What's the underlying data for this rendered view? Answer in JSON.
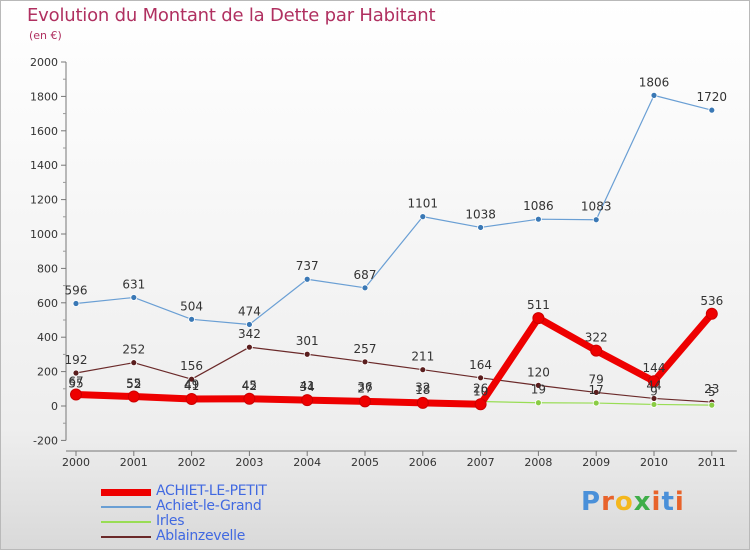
{
  "title": "Evolution du Montant de la Dette par Habitant",
  "subtitle": "(en €)",
  "logo": {
    "text": "Proxiti",
    "colors": [
      "#4a90d9",
      "#e8632b",
      "#f4b71d",
      "#3fae49",
      "#e8632b",
      "#4a90d9",
      "#e8632b"
    ]
  },
  "chart_data": {
    "type": "line",
    "x": [
      "2000",
      "2001",
      "2002",
      "2003",
      "2004",
      "2005",
      "2006",
      "2007",
      "2008",
      "2009",
      "2010",
      "2011"
    ],
    "ylim": [
      -200,
      2000
    ],
    "yticks": [
      -200,
      0,
      200,
      400,
      600,
      800,
      1000,
      1200,
      1400,
      1600,
      1800,
      2000
    ],
    "grid": false,
    "legend_position": "bottom-left",
    "series": [
      {
        "name": "Achiet-le-Grand",
        "color": "#6a9fd4",
        "marker": "#3a78b5",
        "width": 1.2,
        "label_color": "#333",
        "values": [
          596,
          631,
          504,
          474,
          737,
          687,
          1101,
          1038,
          1086,
          1083,
          1806,
          1720
        ]
      },
      {
        "name": "Ablainzevelle",
        "color": "#6b2a2a",
        "marker": "#5a1e1e",
        "width": 1.2,
        "label_color": "#333",
        "values": [
          192,
          252,
          156,
          342,
          301,
          257,
          211,
          164,
          120,
          79,
          44,
          23
        ]
      },
      {
        "name": "Irles",
        "color": "#99dd55",
        "marker": "#8acc44",
        "width": 1.2,
        "label_color": "#333",
        "values": [
          55,
          52,
          49,
          45,
          41,
          36,
          32,
          26,
          19,
          17,
          9,
          5
        ]
      },
      {
        "name": "ACHIET-LE-PETIT",
        "color": "#ee0000",
        "marker": "#ee0000",
        "width": 7,
        "label_color": "#333",
        "values": [
          67,
          55,
          41,
          42,
          34,
          27,
          18,
          10,
          511,
          322,
          144,
          536
        ]
      }
    ]
  }
}
